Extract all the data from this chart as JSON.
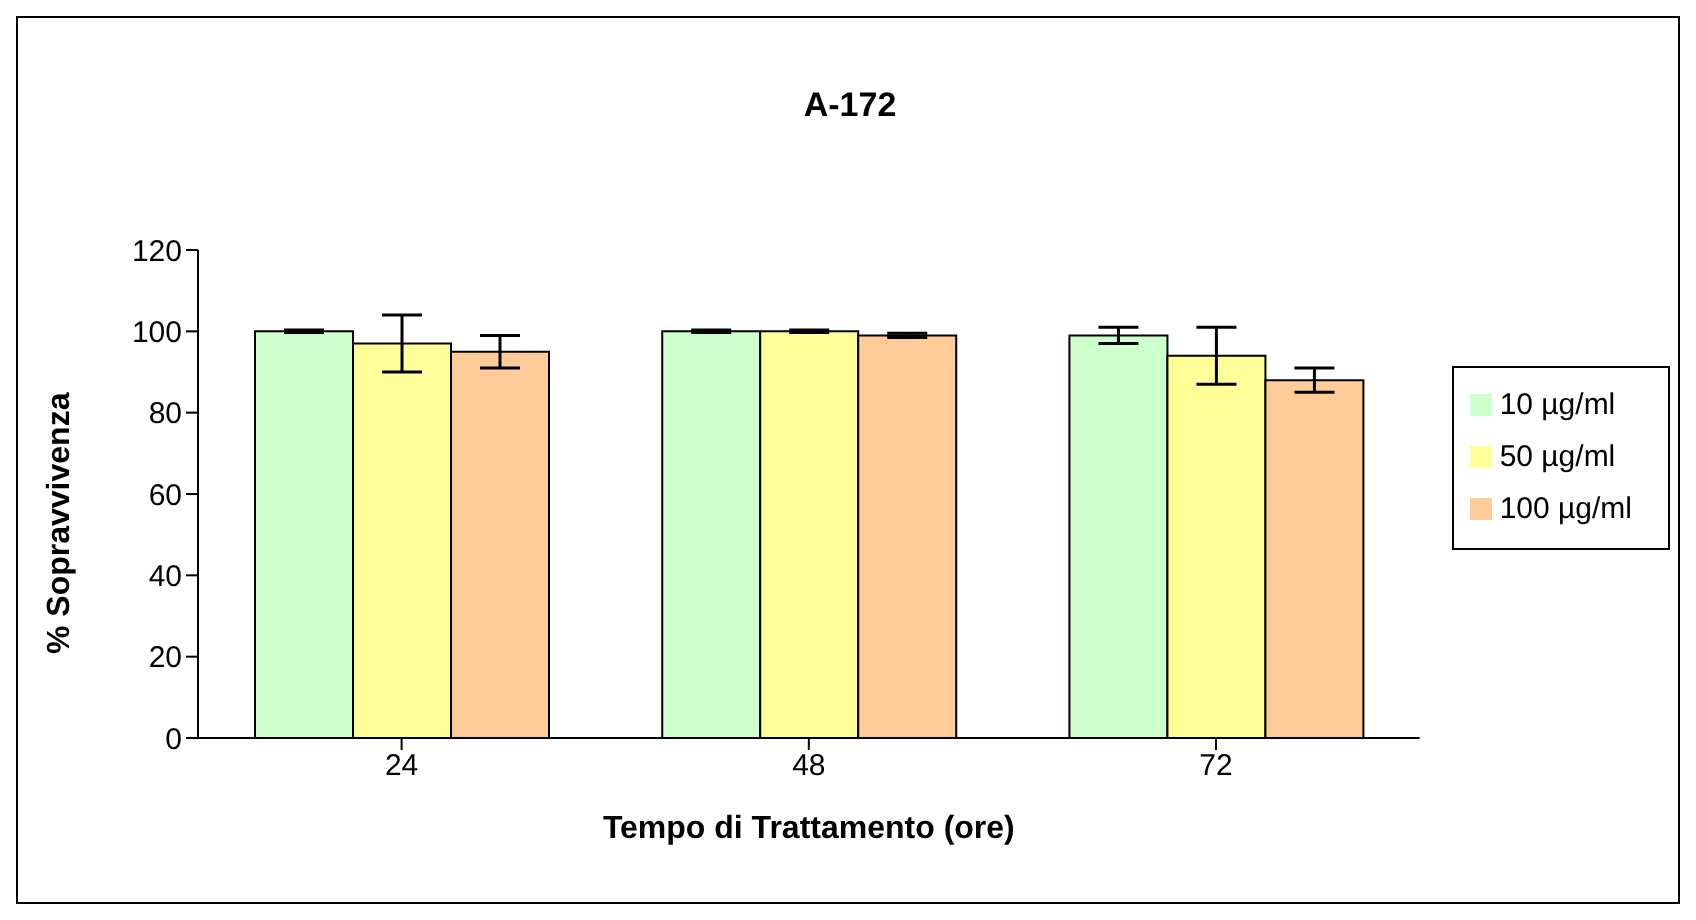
{
  "chart_data": {
    "type": "bar",
    "title": "A-172",
    "xlabel": "Tempo di Trattamento (ore)",
    "ylabel": "% Sopravvivenza",
    "categories": [
      "24",
      "48",
      "72"
    ],
    "series": [
      {
        "name": "10 µg/ml",
        "color": "#ccffcc",
        "values": [
          100,
          100,
          99
        ],
        "errors": [
          0.3,
          0.3,
          2
        ]
      },
      {
        "name": "50 µg/ml",
        "color": "#ffff99",
        "values": [
          97,
          100,
          94
        ],
        "errors": [
          7,
          0.3,
          7
        ]
      },
      {
        "name": "100 µg/ml",
        "color": "#ffcc99",
        "values": [
          95,
          99,
          88
        ],
        "errors": [
          4,
          0.5,
          3
        ]
      }
    ],
    "ylim": [
      0,
      120
    ],
    "yticks": [
      0,
      20,
      40,
      60,
      80,
      100,
      120
    ],
    "legend": "right"
  }
}
